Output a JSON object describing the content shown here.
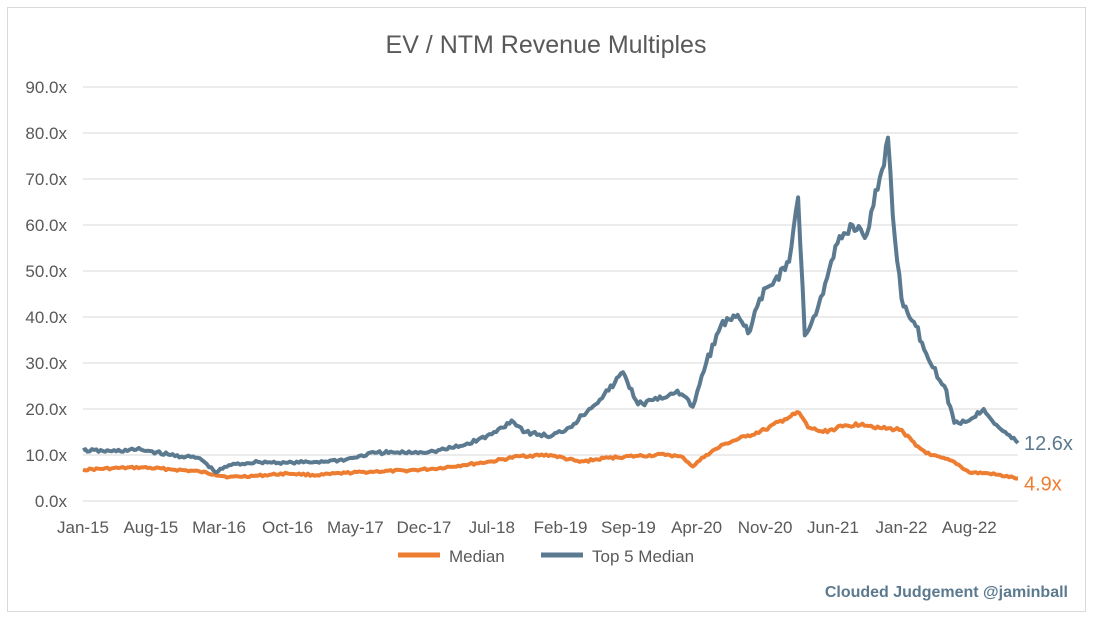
{
  "chart_data": {
    "type": "line",
    "title": "EV / NTM Revenue Multiples",
    "xlabel": "",
    "ylabel": "",
    "x_range": [
      "2015-01-01",
      "2022-12-31"
    ],
    "ylim": [
      0,
      90
    ],
    "yticks": [
      0,
      10,
      20,
      30,
      40,
      50,
      60,
      70,
      80,
      90
    ],
    "ytick_labels": [
      "0.0x",
      "10.0x",
      "20.0x",
      "30.0x",
      "40.0x",
      "50.0x",
      "60.0x",
      "70.0x",
      "80.0x",
      "90.0x"
    ],
    "xticks": [
      "2015-01-01",
      "2015-08-01",
      "2016-03-01",
      "2016-10-01",
      "2017-05-01",
      "2017-12-01",
      "2018-07-01",
      "2019-02-01",
      "2019-09-01",
      "2020-04-01",
      "2020-11-01",
      "2021-06-01",
      "2022-01-01",
      "2022-08-01"
    ],
    "xtick_labels": [
      "Jan-15",
      "Aug-15",
      "Mar-16",
      "Oct-16",
      "May-17",
      "Dec-17",
      "Jul-18",
      "Feb-19",
      "Sep-19",
      "Apr-20",
      "Nov-20",
      "Jun-21",
      "Jan-22",
      "Aug-22"
    ],
    "grid": "horizontal",
    "legend": "bottom",
    "series": [
      {
        "name": "Median",
        "color": "#ED7D31",
        "end_label": "4.9x",
        "x": [
          "2015-01-01",
          "2015-04-01",
          "2015-07-01",
          "2015-10-01",
          "2016-01-01",
          "2016-02-15",
          "2016-04-01",
          "2016-07-01",
          "2016-10-01",
          "2017-01-01",
          "2017-04-01",
          "2017-07-01",
          "2017-10-01",
          "2018-01-01",
          "2018-04-01",
          "2018-07-01",
          "2018-10-01",
          "2019-01-01",
          "2019-04-01",
          "2019-07-01",
          "2019-10-01",
          "2020-01-01",
          "2020-02-20",
          "2020-03-20",
          "2020-05-01",
          "2020-07-01",
          "2020-09-01",
          "2020-11-01",
          "2021-01-01",
          "2021-02-15",
          "2021-03-15",
          "2021-05-01",
          "2021-07-01",
          "2021-09-01",
          "2021-11-01",
          "2022-01-01",
          "2022-02-15",
          "2022-04-01",
          "2022-06-15",
          "2022-08-01",
          "2022-10-01",
          "2022-12-31"
        ],
        "values": [
          6.8,
          7.1,
          7.3,
          6.9,
          6.4,
          5.8,
          5.2,
          5.5,
          6.0,
          5.6,
          6.1,
          6.4,
          6.6,
          7.0,
          7.8,
          8.6,
          9.8,
          10.0,
          8.5,
          9.4,
          9.8,
          10.1,
          9.4,
          7.5,
          10.0,
          12.5,
          14.0,
          15.5,
          17.8,
          19.2,
          16.0,
          15.0,
          16.2,
          16.8,
          15.8,
          15.5,
          12.0,
          10.0,
          8.5,
          6.2,
          6.0,
          4.9
        ]
      },
      {
        "name": "Top 5 Median",
        "color": "#5B7A90",
        "end_label": "12.6x",
        "x": [
          "2015-01-01",
          "2015-04-01",
          "2015-07-01",
          "2015-10-01",
          "2016-01-01",
          "2016-02-20",
          "2016-04-01",
          "2016-07-01",
          "2016-10-01",
          "2017-01-01",
          "2017-04-01",
          "2017-07-01",
          "2017-10-01",
          "2018-01-01",
          "2018-04-01",
          "2018-07-01",
          "2018-09-01",
          "2018-10-15",
          "2019-01-01",
          "2019-03-01",
          "2019-05-01",
          "2019-07-01",
          "2019-08-15",
          "2019-10-01",
          "2019-12-01",
          "2020-02-01",
          "2020-03-20",
          "2020-05-01",
          "2020-06-15",
          "2020-08-01",
          "2020-09-15",
          "2020-10-15",
          "2020-12-01",
          "2021-01-15",
          "2021-02-12",
          "2021-03-05",
          "2021-04-01",
          "2021-05-01",
          "2021-06-15",
          "2021-08-01",
          "2021-09-15",
          "2021-11-01",
          "2021-11-20",
          "2021-12-05",
          "2022-01-01",
          "2022-02-15",
          "2022-04-01",
          "2022-05-15",
          "2022-06-15",
          "2022-08-01",
          "2022-09-15",
          "2022-11-01",
          "2022-12-31"
        ],
        "values": [
          11.0,
          10.8,
          11.2,
          10.0,
          9.3,
          6.2,
          7.8,
          8.5,
          8.3,
          8.5,
          9.0,
          10.5,
          10.5,
          10.8,
          12.0,
          14.5,
          17.5,
          15.0,
          14.0,
          16.0,
          20.0,
          24.0,
          28.0,
          21.0,
          22.0,
          24.0,
          20.5,
          30.0,
          38.0,
          40.0,
          37.0,
          44.0,
          48.0,
          52.0,
          66.0,
          36.0,
          40.0,
          45.0,
          56.0,
          60.0,
          58.0,
          72.0,
          79.0,
          62.0,
          44.0,
          38.0,
          30.0,
          25.0,
          17.0,
          17.5,
          20.0,
          16.0,
          12.6
        ]
      }
    ]
  },
  "watermark": "Clouded Judgement @jaminball"
}
